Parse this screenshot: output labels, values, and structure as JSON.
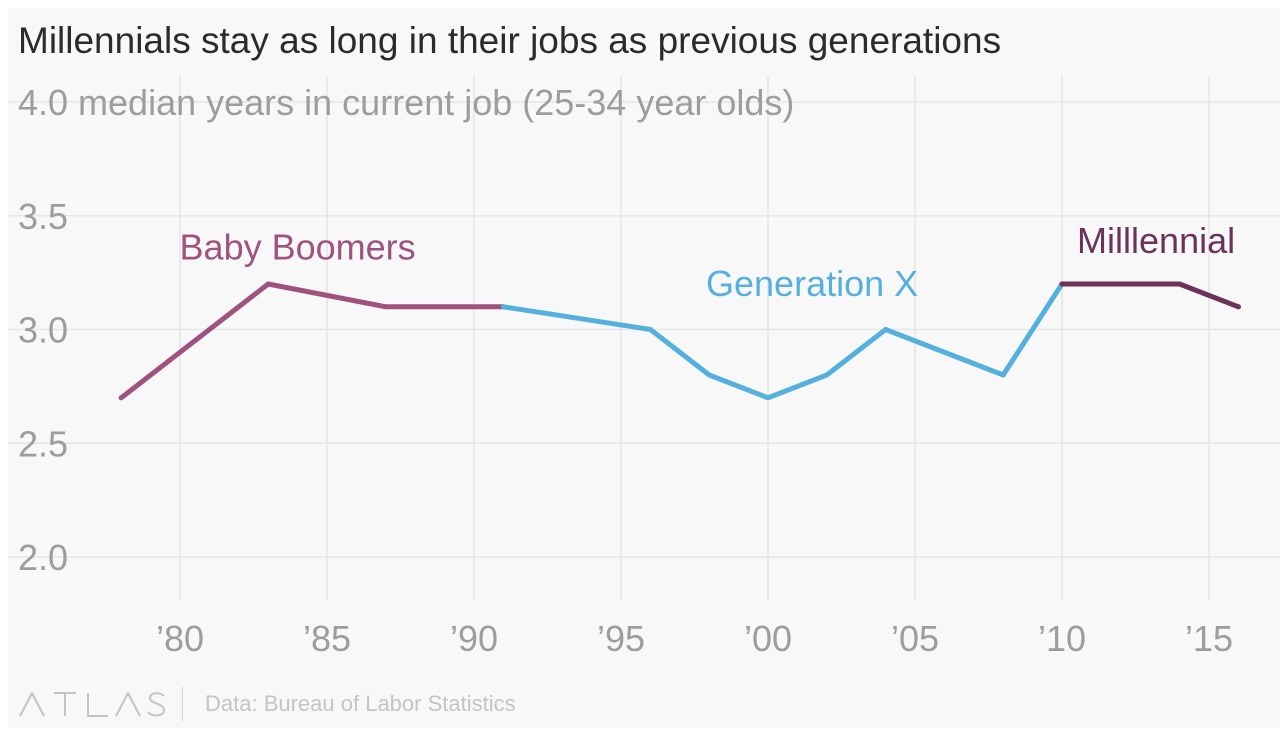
{
  "title": "Millennials stay as long in their jobs as previous generations",
  "footer": {
    "logo_text": "ATLAS",
    "source": "Data: Bureau of Labor Statistics"
  },
  "chart_data": {
    "type": "line",
    "ylabel_inline": "median years in current job (25-34 year olds)",
    "ylim": [
      2.0,
      4.0
    ],
    "y_ticks": [
      {
        "value": 4.0,
        "label": "4.0"
      },
      {
        "value": 3.5,
        "label": "3.5"
      },
      {
        "value": 3.0,
        "label": "3.0"
      },
      {
        "value": 2.5,
        "label": "2.5"
      },
      {
        "value": 2.0,
        "label": "2.0"
      }
    ],
    "xlim": [
      1976,
      2017
    ],
    "x_ticks": [
      {
        "value": 1980,
        "label": "’80"
      },
      {
        "value": 1985,
        "label": "’85"
      },
      {
        "value": 1990,
        "label": "’90"
      },
      {
        "value": 1995,
        "label": "’95"
      },
      {
        "value": 2000,
        "label": "’00"
      },
      {
        "value": 2005,
        "label": "’05"
      },
      {
        "value": 2010,
        "label": "’10"
      },
      {
        "value": 2015,
        "label": "’15"
      }
    ],
    "grid": true,
    "series": [
      {
        "name": "Baby Boomers",
        "color": "#a0527f",
        "x": [
          1978,
          1983,
          1987,
          1991
        ],
        "values": [
          2.7,
          3.2,
          3.1,
          3.1
        ],
        "label_at": {
          "x": 1984,
          "y": 3.36
        }
      },
      {
        "name": "Generation X",
        "color": "#55b0de",
        "x": [
          1991,
          1996,
          1998,
          2000,
          2002,
          2004,
          2008,
          2010
        ],
        "values": [
          3.1,
          3.0,
          2.8,
          2.7,
          2.8,
          3.0,
          2.8,
          3.2
        ],
        "label_at": {
          "x": 2001.5,
          "y": 3.2
        }
      },
      {
        "name": "Milllennial",
        "color": "#6b3359",
        "x": [
          2010,
          2014,
          2016
        ],
        "values": [
          3.2,
          3.2,
          3.1
        ],
        "label_at": {
          "x": 2013.2,
          "y": 3.39
        }
      }
    ]
  }
}
